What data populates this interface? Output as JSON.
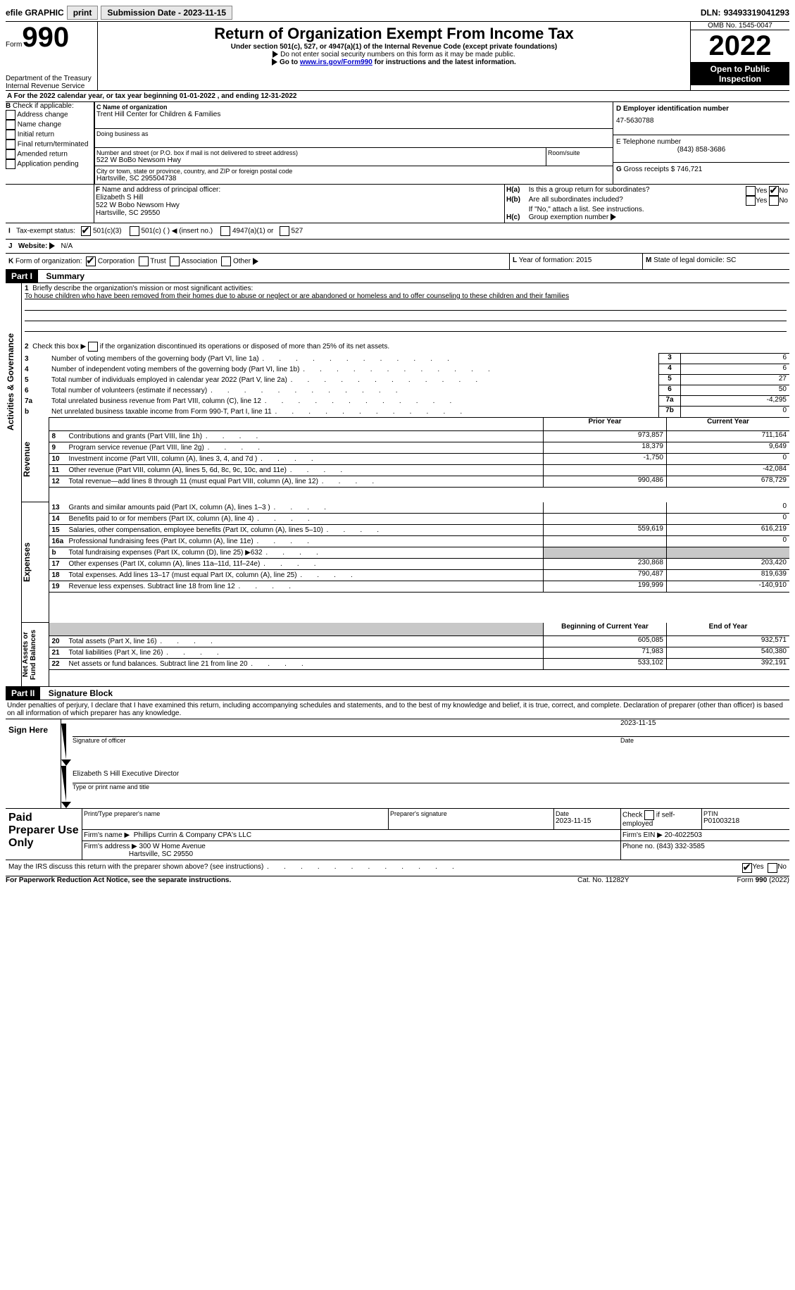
{
  "topbar": {
    "efile": "efile GRAPHIC",
    "print": "print",
    "sub_label": "Submission Date - 2023-11-15",
    "dln_label": "DLN:",
    "dln": "93493319041293"
  },
  "header": {
    "form_label": "Form",
    "form_no": "990",
    "title": "Return of Organization Exempt From Income Tax",
    "subtitle": "Under section 501(c), 527, or 4947(a)(1) of the Internal Revenue Code (except private foundations)",
    "note1": "Do not enter social security numbers on this form as it may be made public.",
    "note2_pre": "Go to ",
    "note2_link": "www.irs.gov/Form990",
    "note2_post": " for instructions and the latest information.",
    "dept": "Department of the Treasury",
    "irs": "Internal Revenue Service",
    "omb": "OMB No. 1545-0047",
    "year": "2022",
    "open": "Open to Public Inspection"
  },
  "periodA": {
    "text_pre": "For the 2022 calendar year, or tax year beginning ",
    "begin": "01-01-2022",
    "mid": " , and ending ",
    "end": "12-31-2022"
  },
  "boxB": {
    "label": "B",
    "caption": "Check if applicable:",
    "opts": [
      "Address change",
      "Name change",
      "Initial return",
      "Final return/terminated",
      "Amended return",
      "Application pending"
    ]
  },
  "boxC": {
    "c_label": "C Name of organization",
    "org": "Trent Hill Center for Children & Families",
    "dba": "Doing business as",
    "addr_label": "Number and street (or P.O. box if mail is not delivered to street address)",
    "room": "Room/suite",
    "addr": "522 W BoBo Newsom Hwy",
    "city_label": "City or town, state or province, country, and ZIP or foreign postal code",
    "city": "Hartsville, SC  295504738"
  },
  "boxD": {
    "label": "D Employer identification number",
    "ein": "47-5630788"
  },
  "boxE": {
    "label": "E Telephone number",
    "phone": "(843) 858-3686"
  },
  "boxG": {
    "label": "G",
    "text": " Gross receipts $ ",
    "amt": "746,721"
  },
  "boxF": {
    "label": "F",
    "caption": "Name and address of principal officer:",
    "name": "Elizabeth S Hill",
    "addr1": "522 W Bobo Newsom Hwy",
    "addr2": "Hartsville, SC  29550"
  },
  "boxH": {
    "a": "H(a)",
    "a_text": "Is this a group return for subordinates?",
    "b": "H(b)",
    "b_text": "Are all subordinates included?",
    "note": "If \"No,\" attach a list. See instructions.",
    "c": "H(c)",
    "c_text": "Group exemption number",
    "yes": "Yes",
    "no": "No"
  },
  "boxI": {
    "label": "I",
    "caption": "Tax-exempt status:",
    "o1": "501(c)(3)",
    "o2": "501(c) (  )",
    "o2b": "(insert no.)",
    "o3": "4947(a)(1) or",
    "o4": "527"
  },
  "boxJ": {
    "label": "J",
    "caption": "Website:",
    "val": "N/A"
  },
  "boxK": {
    "label": "K",
    "caption": "Form of organization:",
    "o1": "Corporation",
    "o2": "Trust",
    "o3": "Association",
    "o4": "Other"
  },
  "boxL": {
    "label": "L",
    "caption": "Year of formation: ",
    "val": "2015"
  },
  "boxM": {
    "label": "M",
    "caption": "State of legal domicile: ",
    "val": "SC"
  },
  "part1": {
    "label": "Part I",
    "title": "Summary"
  },
  "vlabels": {
    "ag": "Activities & Governance",
    "rev": "Revenue",
    "exp": "Expenses",
    "na": "Net Assets or Fund Balances"
  },
  "s1": {
    "l1a": "Briefly describe the organization's mission or most significant activities:",
    "l1b": "To house children who have been removed from their homes due to abuse or neglect or are abandoned or homeless and to offer counseling to these children and their families",
    "l2": "Check this box ▶",
    "l2b": "if the organization discontinued its operations or disposed of more than 25% of its net assets.",
    "heads": {
      "prior": "Prior Year",
      "current": "Current Year",
      "boy": "Beginning of Current Year",
      "eoy": "End of Year"
    },
    "rows": [
      {
        "n": "3",
        "t": "Number of voting members of the governing body (Part VI, line 1a)",
        "box": "3",
        "v": "6"
      },
      {
        "n": "4",
        "t": "Number of independent voting members of the governing body (Part VI, line 1b)",
        "box": "4",
        "v": "6"
      },
      {
        "n": "5",
        "t": "Total number of individuals employed in calendar year 2022 (Part V, line 2a)",
        "box": "5",
        "v": "27"
      },
      {
        "n": "6",
        "t": "Total number of volunteers (estimate if necessary)",
        "box": "6",
        "v": "50"
      },
      {
        "n": "7a",
        "t": "Total unrelated business revenue from Part VIII, column (C), line 12",
        "box": "7a",
        "v": "-4,295"
      },
      {
        "n": "b",
        "t": "Net unrelated business taxable income from Form 990-T, Part I, line 11",
        "box": "7b",
        "v": "0"
      }
    ],
    "rev": [
      {
        "n": "8",
        "t": "Contributions and grants (Part VIII, line 1h)",
        "p": "973,857",
        "c": "711,164"
      },
      {
        "n": "9",
        "t": "Program service revenue (Part VIII, line 2g)",
        "p": "18,379",
        "c": "9,649"
      },
      {
        "n": "10",
        "t": "Investment income (Part VIII, column (A), lines 3, 4, and 7d )",
        "p": "-1,750",
        "c": "0"
      },
      {
        "n": "11",
        "t": "Other revenue (Part VIII, column (A), lines 5, 6d, 8c, 9c, 10c, and 11e)",
        "p": "",
        "c": "-42,084"
      },
      {
        "n": "12",
        "t": "Total revenue—add lines 8 through 11 (must equal Part VIII, column (A), line 12)",
        "p": "990,486",
        "c": "678,729"
      }
    ],
    "exp": [
      {
        "n": "13",
        "t": "Grants and similar amounts paid (Part IX, column (A), lines 1–3 )",
        "p": "",
        "c": "0"
      },
      {
        "n": "14",
        "t": "Benefits paid to or for members (Part IX, column (A), line 4)",
        "p": "",
        "c": "0"
      },
      {
        "n": "15",
        "t": "Salaries, other compensation, employee benefits (Part IX, column (A), lines 5–10)",
        "p": "559,619",
        "c": "616,219"
      },
      {
        "n": "16a",
        "t": "Professional fundraising fees (Part IX, column (A), line 11e)",
        "p": "",
        "c": "0"
      },
      {
        "n": "b",
        "t": "Total fundraising expenses (Part IX, column (D), line 25) ▶632",
        "p": "grey",
        "c": "grey"
      },
      {
        "n": "17",
        "t": "Other expenses (Part IX, column (A), lines 11a–11d, 11f–24e)",
        "p": "230,868",
        "c": "203,420"
      },
      {
        "n": "18",
        "t": "Total expenses. Add lines 13–17 (must equal Part IX, column (A), line 25)",
        "p": "790,487",
        "c": "819,639"
      },
      {
        "n": "19",
        "t": "Revenue less expenses. Subtract line 18 from line 12",
        "p": "199,999",
        "c": "-140,910"
      }
    ],
    "na": [
      {
        "n": "20",
        "t": "Total assets (Part X, line 16)",
        "p": "605,085",
        "c": "932,571"
      },
      {
        "n": "21",
        "t": "Total liabilities (Part X, line 26)",
        "p": "71,983",
        "c": "540,380"
      },
      {
        "n": "22",
        "t": "Net assets or fund balances. Subtract line 21 from line 20",
        "p": "533,102",
        "c": "392,191"
      }
    ]
  },
  "part2": {
    "label": "Part II",
    "title": "Signature Block"
  },
  "sig": {
    "penalty": "Under penalties of perjury, I declare that I have examined this return, including accompanying schedules and statements, and to the best of my knowledge and belief, it is true, correct, and complete. Declaration of preparer (other than officer) is based on all information of which preparer has any knowledge.",
    "here": "Sign Here",
    "sigoff": "Signature of officer",
    "date": "Date",
    "sigdate": "2023-11-15",
    "name": "Elizabeth S Hill  Executive Director",
    "typeprint": "Type or print name and title",
    "paid": "Paid Preparer Use Only",
    "ppname_l": "Print/Type preparer's name",
    "ppsig_l": "Preparer's signature",
    "ppdate_l": "Date",
    "ppdate": "2023-11-15",
    "check_l": "Check",
    "if_l": "if self-employed",
    "ptin_l": "PTIN",
    "ptin": "P01003218",
    "firm_l": "Firm's name   ▶",
    "firm": "Phillips Currin & Company CPA's LLC",
    "firmein_l": "Firm's EIN ▶",
    "firmein": "20-4022503",
    "firmaddr_l": "Firm's address ▶",
    "firmaddr1": "300 W Home Avenue",
    "firmaddr2": "Hartsville, SC  29550",
    "phone_l": "Phone no.",
    "phone": "(843) 332-3585",
    "discuss": "May the IRS discuss this return with the preparer shown above? (see instructions)",
    "yes": "Yes",
    "no": "No"
  },
  "footer": {
    "left": "For Paperwork Reduction Act Notice, see the separate instructions.",
    "mid": "Cat. No. 11282Y",
    "right": "Form 990 (2022)"
  }
}
